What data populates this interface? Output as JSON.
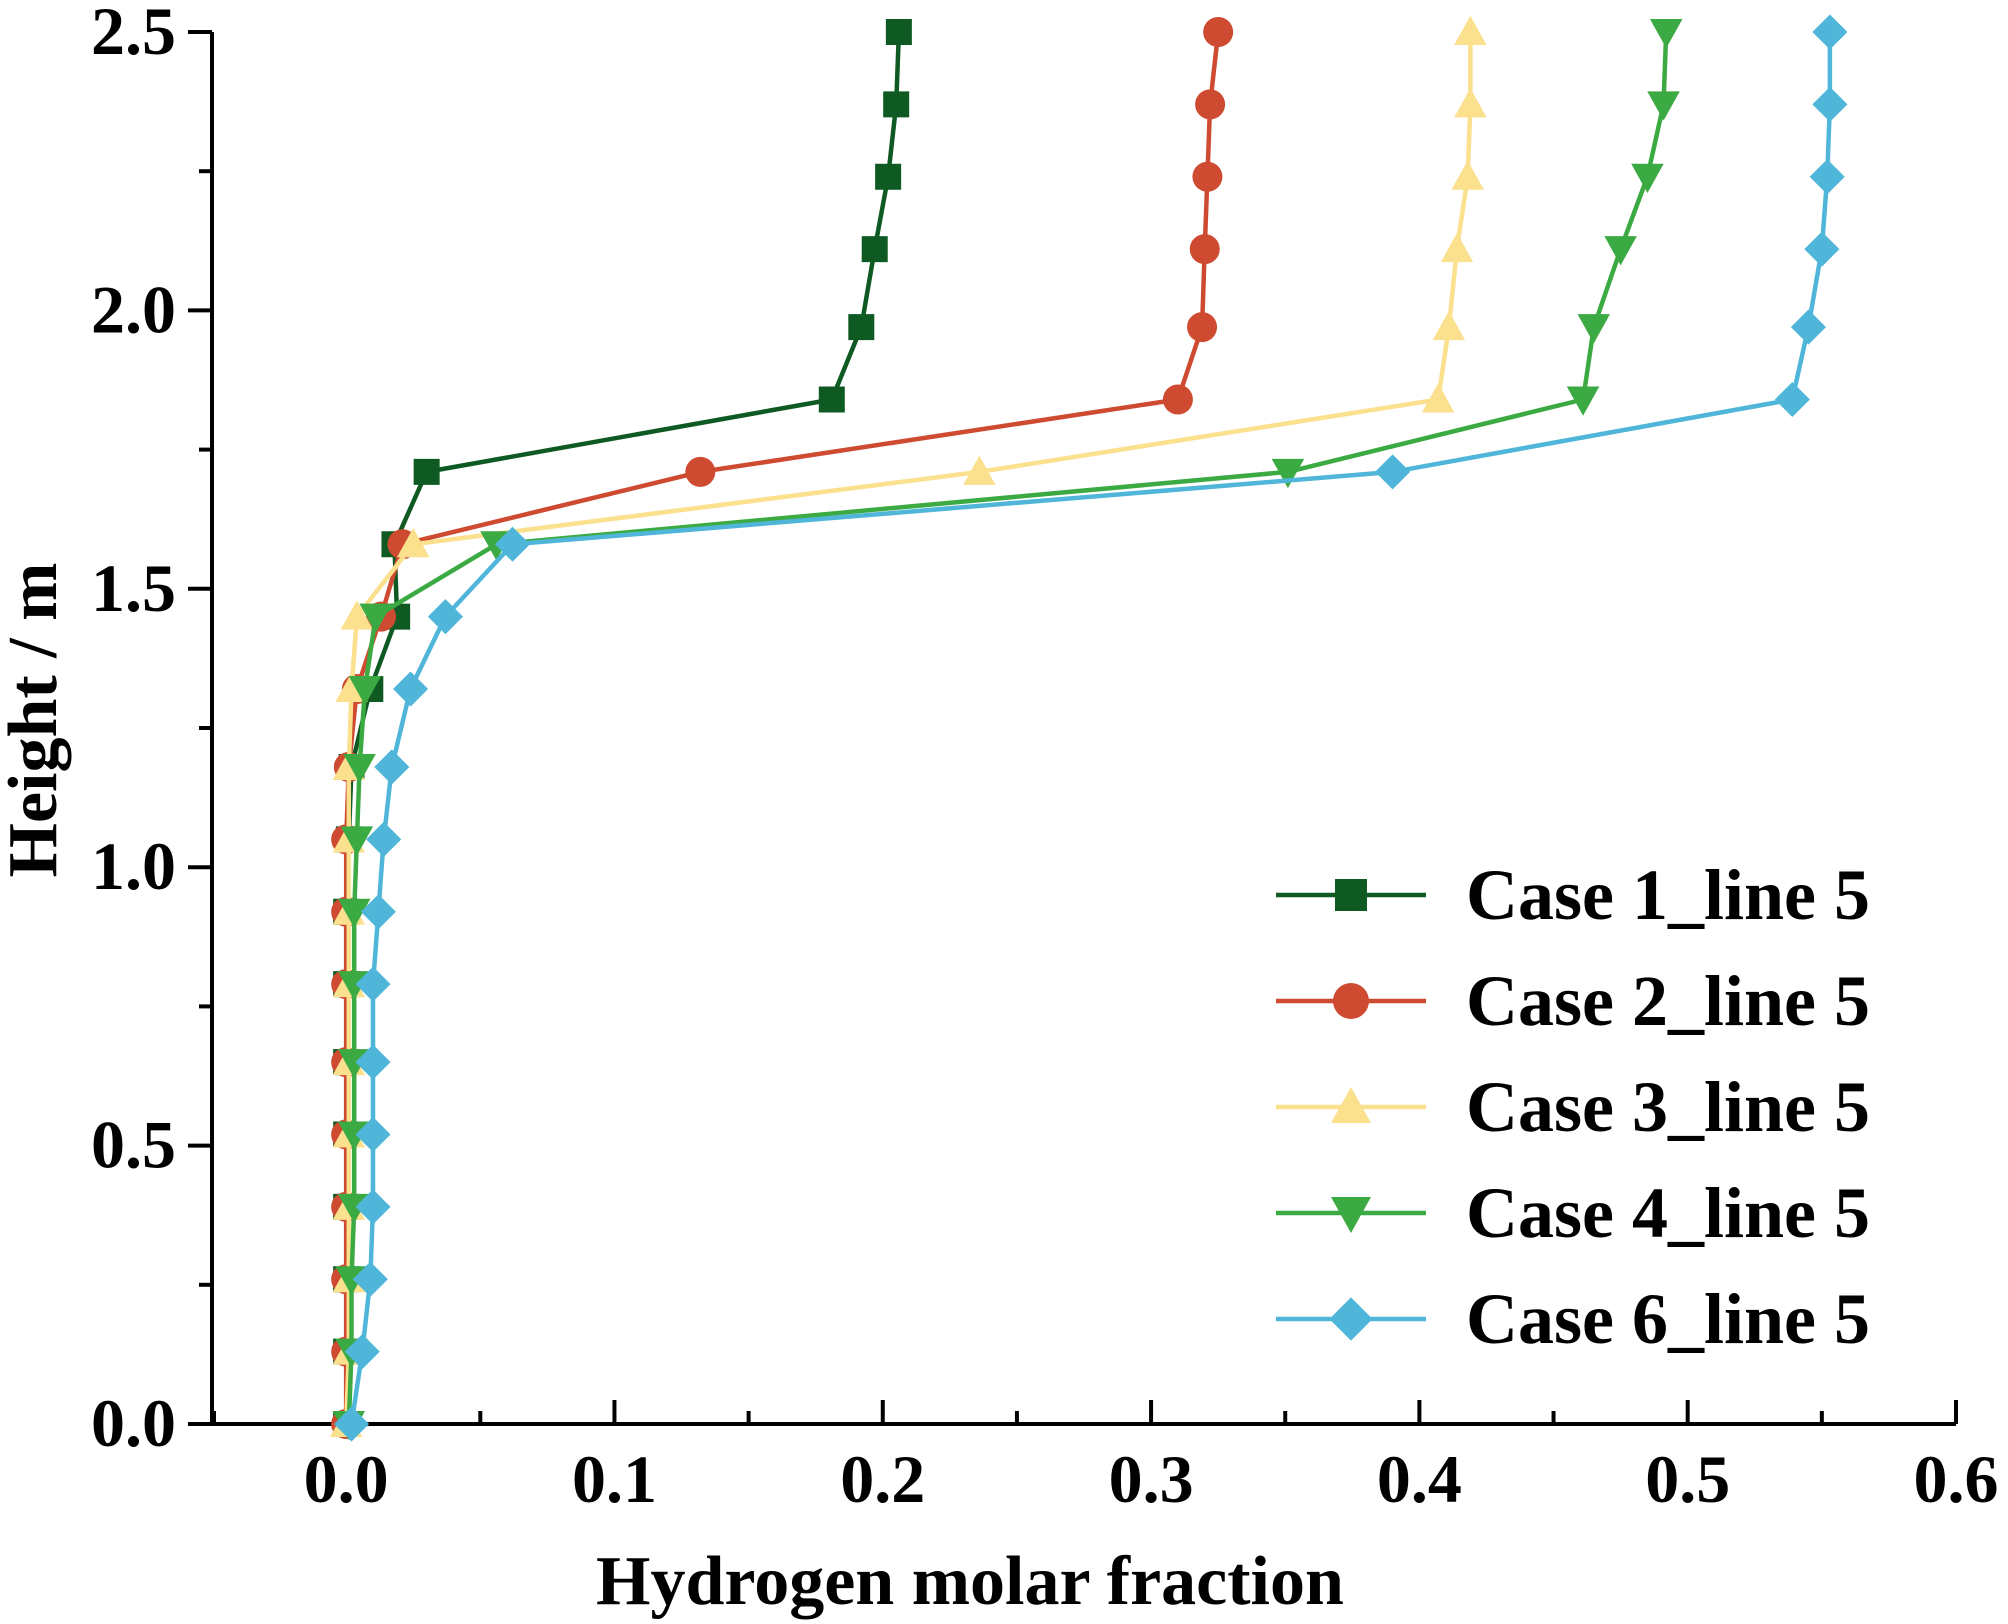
{
  "chart_data": {
    "type": "line",
    "title": "",
    "xlabel": "Hydrogen molar fraction",
    "ylabel": "Height / m",
    "xlim": [
      -0.05,
      0.6
    ],
    "ylim": [
      0.0,
      2.5
    ],
    "xticks": [
      "0.0",
      "0.1",
      "0.2",
      "0.3",
      "0.4",
      "0.5",
      "0.6"
    ],
    "yticks": [
      "0.0",
      "0.5",
      "1.0",
      "1.5",
      "2.0",
      "2.5"
    ],
    "grid": false,
    "legend_position": "bottom-right",
    "y": [
      0.0,
      0.13,
      0.26,
      0.39,
      0.52,
      0.65,
      0.79,
      0.92,
      1.05,
      1.18,
      1.32,
      1.45,
      1.58,
      1.71,
      1.84,
      1.97,
      2.11,
      2.24,
      2.37,
      2.5
    ],
    "series": [
      {
        "name": "Case 1_line 5",
        "color": "#0f5a23",
        "marker": "square",
        "x": [
          0.0,
          0.0,
          0.0,
          0.0,
          0.0,
          0.0,
          0.0,
          0.0,
          0.001,
          0.002,
          0.009,
          0.019,
          0.018,
          0.03,
          0.181,
          0.192,
          0.197,
          0.202,
          0.205,
          0.206
        ]
      },
      {
        "name": "Case 2_line 5",
        "color": "#ce4a30",
        "marker": "circle",
        "x": [
          0.0,
          0.0,
          0.0,
          0.0,
          0.0,
          0.0,
          0.0,
          0.0,
          0.0,
          0.001,
          0.004,
          0.013,
          0.021,
          0.132,
          0.31,
          0.319,
          0.32,
          0.321,
          0.322,
          0.325
        ]
      },
      {
        "name": "Case 3_line 5",
        "color": "#fbe08e",
        "marker": "triangle-up",
        "x": [
          0.0,
          0.001,
          0.001,
          0.001,
          0.001,
          0.001,
          0.001,
          0.001,
          0.001,
          0.001,
          0.002,
          0.004,
          0.025,
          0.236,
          0.407,
          0.411,
          0.414,
          0.418,
          0.419,
          0.419
        ]
      },
      {
        "name": "Case 4_line 5",
        "color": "#3caa42",
        "marker": "triangle-down",
        "x": [
          0.001,
          0.002,
          0.002,
          0.003,
          0.003,
          0.003,
          0.003,
          0.003,
          0.004,
          0.005,
          0.007,
          0.011,
          0.056,
          0.351,
          0.461,
          0.465,
          0.475,
          0.485,
          0.491,
          0.492
        ]
      },
      {
        "name": "Case 6_line 5",
        "color": "#4fb6d9",
        "marker": "diamond",
        "x": [
          0.002,
          0.006,
          0.009,
          0.01,
          0.01,
          0.01,
          0.01,
          0.012,
          0.014,
          0.017,
          0.024,
          0.037,
          0.062,
          0.39,
          0.539,
          0.545,
          0.55,
          0.552,
          0.553,
          0.553
        ]
      }
    ]
  }
}
